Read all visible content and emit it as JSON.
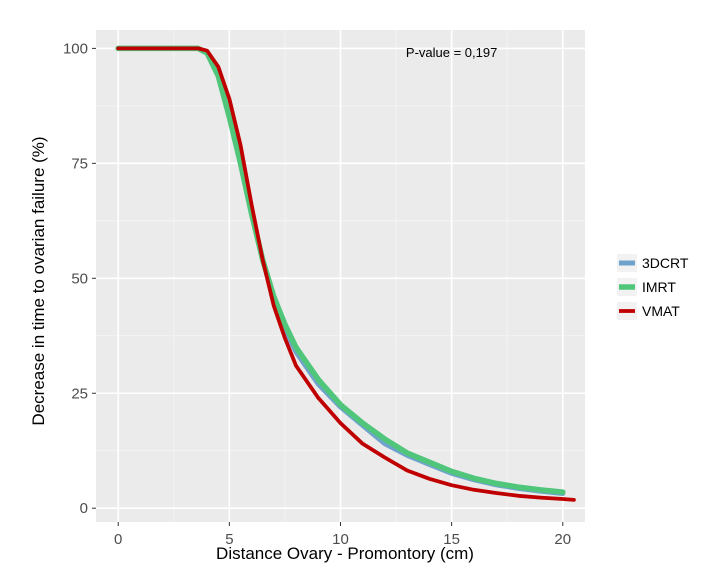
{
  "chart_data": {
    "type": "line",
    "title": "",
    "xlabel": "Distance Ovary - Promontory (cm)",
    "ylabel": "Decrease in time to ovarian failure (%)",
    "xlim": [
      -1,
      21
    ],
    "ylim": [
      -3,
      104
    ],
    "xticks": [
      0,
      5,
      10,
      15,
      20
    ],
    "xtick_labels": [
      "0",
      "5",
      "10",
      "15",
      "20"
    ],
    "yticks": [
      0,
      25,
      50,
      75,
      100
    ],
    "ytick_labels": [
      "0",
      "25",
      "50",
      "75",
      "100"
    ],
    "grid": true,
    "annotation": {
      "text": "P-value = 0,197",
      "x": 15,
      "y": 99
    },
    "legend_position": "right",
    "series": [
      {
        "name": "3DCRT",
        "color": "#6fa3cc",
        "x": [
          0,
          3.6,
          4.0,
          4.5,
          5.0,
          5.5,
          6.0,
          6.5,
          7.0,
          7.5,
          8.0,
          9.0,
          10.0,
          11.0,
          12.0,
          13.0,
          14.0,
          15.0,
          16.0,
          17.0,
          18.0,
          19.0,
          20.0
        ],
        "y": [
          100,
          100,
          99,
          94,
          85,
          75,
          64,
          54,
          46,
          39,
          34,
          27,
          22,
          18,
          14,
          11.5,
          9.5,
          7.6,
          6.2,
          5.1,
          4.3,
          3.7,
          3.2
        ]
      },
      {
        "name": "IMRT",
        "color": "#4fc67a",
        "x": [
          0,
          3.6,
          4.0,
          4.5,
          5.0,
          5.5,
          6.0,
          6.5,
          7.0,
          7.5,
          8.0,
          9.0,
          10.0,
          11.0,
          12.0,
          13.0,
          14.0,
          15.0,
          16.0,
          17.0,
          18.0,
          19.0,
          20.0
        ],
        "y": [
          100,
          100,
          99,
          94,
          85,
          75,
          64,
          54,
          46,
          40,
          35,
          28,
          22.5,
          18.5,
          15,
          12,
          10,
          8,
          6.5,
          5.4,
          4.6,
          4.0,
          3.5
        ]
      },
      {
        "name": "VMAT",
        "color": "#c00000",
        "x": [
          0,
          3.6,
          4.0,
          4.5,
          5.0,
          5.5,
          6.0,
          6.5,
          7.0,
          7.5,
          8.0,
          9.0,
          10.0,
          11.0,
          12.0,
          13.0,
          14.0,
          15.0,
          16.0,
          17.0,
          18.0,
          19.0,
          20.0,
          20.5
        ],
        "y": [
          100,
          100,
          99.5,
          96,
          89,
          79,
          66,
          54,
          44,
          37,
          31,
          24,
          18.5,
          14,
          11,
          8.2,
          6.4,
          5.0,
          4.0,
          3.3,
          2.7,
          2.3,
          2.0,
          1.8
        ]
      }
    ]
  }
}
